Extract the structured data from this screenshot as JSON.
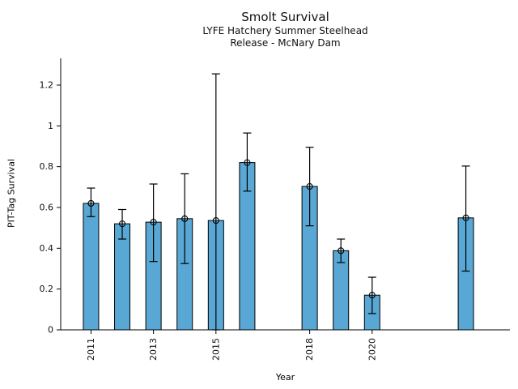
{
  "chart_data": {
    "type": "bar",
    "title": "Smolt Survival",
    "subtitle_line1": "LYFE Hatchery Summer Steelhead",
    "subtitle_line2": "Release - McNary Dam",
    "xlabel": "Year",
    "ylabel": "PIT-Tag Survival",
    "points": [
      {
        "year": 2011,
        "value": 0.62,
        "err_low": 0.555,
        "err_high": 0.695
      },
      {
        "year": 2012,
        "value": 0.52,
        "err_low": 0.445,
        "err_high": 0.59
      },
      {
        "year": 2013,
        "value": 0.528,
        "err_low": 0.335,
        "err_high": 0.715
      },
      {
        "year": 2014,
        "value": 0.545,
        "err_low": 0.325,
        "err_high": 0.765
      },
      {
        "year": 2015,
        "value": 0.536,
        "err_low": 0.0,
        "err_high": 1.255
      },
      {
        "year": 2016,
        "value": 0.82,
        "err_low": 0.68,
        "err_high": 0.965
      },
      {
        "year": 2018,
        "value": 0.703,
        "err_low": 0.51,
        "err_high": 0.895
      },
      {
        "year": 2019,
        "value": 0.388,
        "err_low": 0.33,
        "err_high": 0.445
      },
      {
        "year": 2020,
        "value": 0.17,
        "err_low": 0.08,
        "err_high": 0.258
      },
      {
        "year": 2023,
        "value": 0.549,
        "err_low": 0.288,
        "err_high": 0.803
      }
    ],
    "missing_years": [
      2017,
      2021,
      2022
    ],
    "xticks": [
      2011,
      2013,
      2015,
      2018,
      2020
    ],
    "yticks": [
      0,
      0.2,
      0.4,
      0.6,
      0.8,
      1.0,
      1.2
    ],
    "ytick_labels": [
      "0",
      "0.2",
      "0.4",
      "0.6",
      "0.8",
      "1",
      "1.2"
    ],
    "xlim": [
      2010.03,
      2024.41
    ],
    "ylim": [
      0,
      1.331
    ],
    "grid": false,
    "legend": null,
    "marker": "open-circle",
    "bar_color": "#58a7d4",
    "bar_edge_color": "#000000",
    "error_bar_color": "#000000",
    "axis_color": "#000000",
    "background_color": "#ffffff"
  }
}
